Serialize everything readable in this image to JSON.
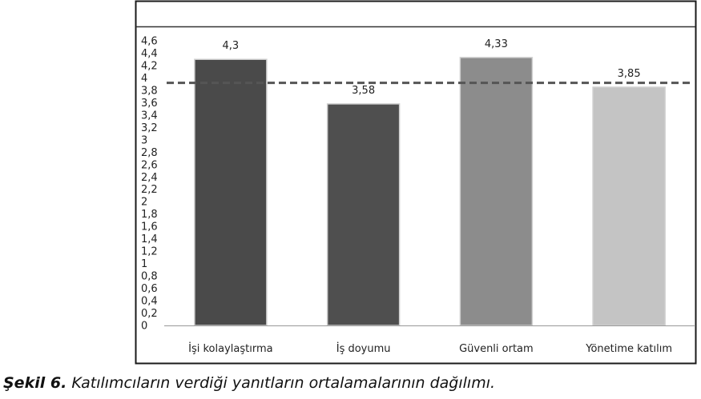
{
  "chart_data": {
    "type": "bar",
    "categories": [
      "İşi kolaylaştırma",
      "İş doyumu",
      "Güvenli ortam",
      "Yönetime katılım"
    ],
    "values": [
      4.3,
      3.58,
      4.33,
      3.85
    ],
    "value_labels": [
      "4,3",
      "3,58",
      "4,33",
      "3,85"
    ],
    "ylim": [
      0,
      4.6
    ],
    "y_ticks": [
      "0",
      "0,2",
      "0,4",
      "0,6",
      "0,8",
      "1",
      "1,2",
      "1,4",
      "1,6",
      "1,8",
      "2",
      "2,2",
      "2,4",
      "2,6",
      "2,8",
      "3",
      "3,2",
      "3,4",
      "3,6",
      "3,8",
      "4",
      "4,2",
      "4,4",
      "4,6"
    ],
    "reference_line": 3.92,
    "bar_colors": [
      "#4a4a4a",
      "#4f4f4f",
      "#8c8c8c",
      "#c4c4c4"
    ],
    "grid": false,
    "legend": "none"
  },
  "caption": {
    "lead": "Şekil 6.",
    "text": " Katılımcıların verdiği yanıtların ortalamalarının dağılımı."
  }
}
